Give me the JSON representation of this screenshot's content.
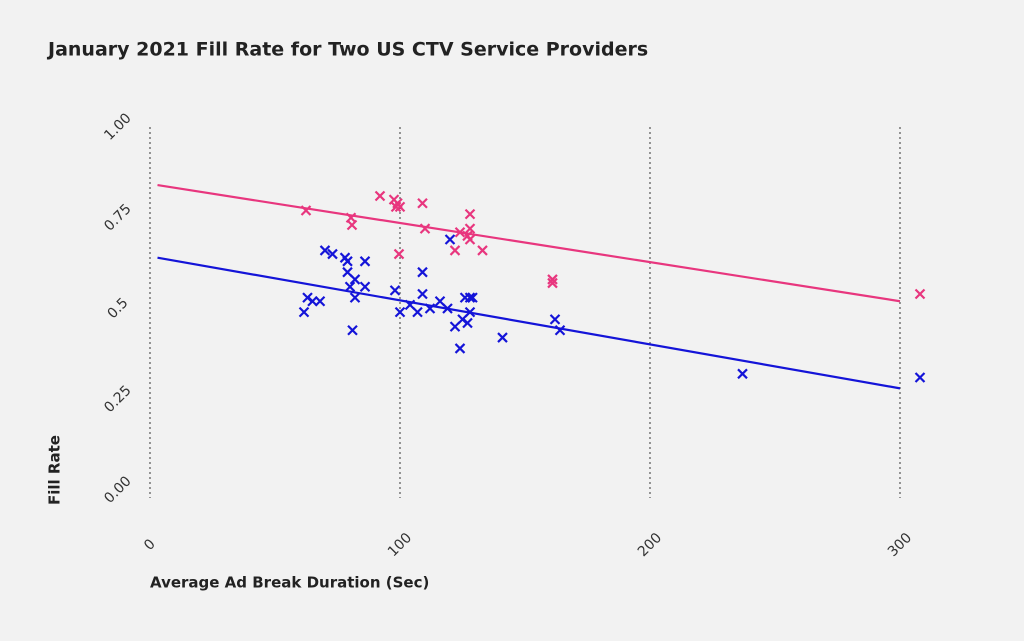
{
  "chart_data": {
    "type": "scatter",
    "title": "January 2021 Fill Rate for Two US CTV Service Providers",
    "x_label": "Average Ad Break Duration (Sec)",
    "y_label": "Fill Rate",
    "xlim": [
      0,
      310
    ],
    "xticks": [
      0,
      100,
      200,
      300
    ],
    "ylim": [
      0,
      1
    ],
    "yticks": [
      {
        "value": 0,
        "label": "0.00"
      },
      0.25,
      0.5,
      0.75,
      {
        "value": 1,
        "label": "1.00"
      }
    ],
    "grid": "x",
    "series": [
      {
        "color": "#e8367e",
        "x": [
          62.4,
          80.4,
          80.8,
          92,
          97.6,
          99,
          100,
          98.4,
          99.6,
          109,
          110,
          122,
          124,
          127,
          128,
          128,
          128,
          133,
          161,
          161,
          308
        ],
        "values": [
          0.77,
          0.75,
          0.73,
          0.81,
          0.8,
          0.79,
          0.78,
          0.78,
          0.65,
          0.79,
          0.72,
          0.66,
          0.71,
          0.7,
          0.76,
          0.72,
          0.69,
          0.66,
          0.58,
          0.57,
          0.54
        ],
        "trend_x": [
          3,
          300
        ],
        "trend_values": [
          0.84,
          0.52
        ]
      },
      {
        "color": "#1414d8",
        "x": [
          61.6,
          63,
          65,
          68,
          70,
          73,
          78,
          79,
          79,
          80,
          81,
          82,
          82,
          86,
          86,
          98,
          100,
          104,
          107,
          109,
          109,
          112,
          116,
          119,
          120,
          122,
          124,
          125,
          126,
          128,
          127,
          128,
          129,
          141,
          162,
          164,
          237,
          308
        ],
        "values": [
          0.49,
          0.53,
          0.52,
          0.52,
          0.66,
          0.65,
          0.64,
          0.63,
          0.6,
          0.56,
          0.44,
          0.58,
          0.53,
          0.63,
          0.56,
          0.55,
          0.49,
          0.51,
          0.49,
          0.6,
          0.54,
          0.5,
          0.52,
          0.5,
          0.69,
          0.45,
          0.39,
          0.47,
          0.53,
          0.53,
          0.46,
          0.49,
          0.53,
          0.42,
          0.47,
          0.44,
          0.32,
          0.31
        ],
        "trend_x": [
          3,
          300
        ],
        "trend_values": [
          0.64,
          0.28
        ]
      }
    ]
  }
}
